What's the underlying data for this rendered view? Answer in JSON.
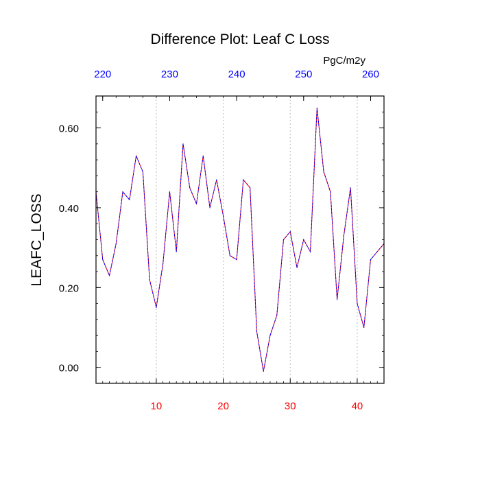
{
  "chart_data": {
    "type": "line",
    "title": "Difference Plot: Leaf C Loss",
    "units": "PgC/m2y",
    "ylabel": "LEAFC_LOSS",
    "xlim": [
      1,
      44
    ],
    "ylim": [
      -0.04,
      0.68
    ],
    "yticks": [
      0.0,
      0.2,
      0.4,
      0.6
    ],
    "ytick_labels": [
      "0.00",
      "0.20",
      "0.40",
      "0.60"
    ],
    "xticks_bottom": [
      10,
      20,
      30,
      40
    ],
    "xticks_bottom_labels": [
      "10",
      "20",
      "30",
      "40"
    ],
    "xticks_top_labels": [
      "220",
      "230",
      "240",
      "250",
      "260"
    ],
    "grid": "vertical dotted at bottom-axis ticks",
    "colors": {
      "line_outer": "#ff0000",
      "line_inner": "#0000ff",
      "bottom_axis_labels": "#ff0000",
      "top_axis_labels": "#0000ff",
      "grid": "#bbbbbb"
    },
    "series": [
      {
        "x": [
          1,
          2,
          3,
          4,
          5,
          6,
          7,
          8,
          9,
          10,
          11,
          12,
          13,
          14,
          15,
          16,
          17,
          18,
          19,
          20,
          21,
          22,
          23,
          24,
          25,
          26,
          27,
          28,
          29,
          30,
          31,
          32,
          33,
          34,
          35,
          36,
          37,
          38,
          39,
          40,
          41,
          42,
          43,
          44
        ],
        "values": [
          0.44,
          0.27,
          0.23,
          0.31,
          0.44,
          0.42,
          0.53,
          0.49,
          0.22,
          0.15,
          0.26,
          0.44,
          0.29,
          0.56,
          0.45,
          0.41,
          0.53,
          0.4,
          0.47,
          0.38,
          0.28,
          0.27,
          0.47,
          0.45,
          0.09,
          -0.01,
          0.08,
          0.13,
          0.32,
          0.34,
          0.25,
          0.32,
          0.29,
          0.65,
          0.49,
          0.44,
          0.17,
          0.33,
          0.45,
          0.16,
          0.1,
          0.27,
          0.29,
          0.31
        ]
      }
    ]
  }
}
